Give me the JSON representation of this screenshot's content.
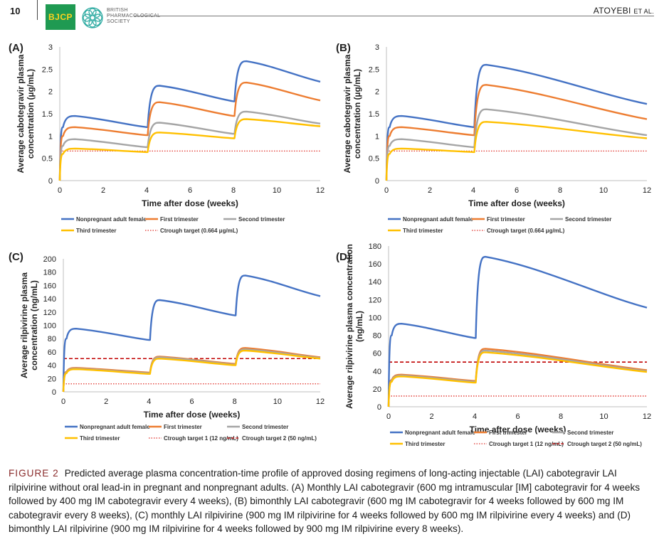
{
  "header": {
    "page_number": "10",
    "journal_abbrev": "BJCP",
    "society_lines": [
      "BRITISH",
      "PHARMACOLOGICAL",
      "SOCIETY"
    ],
    "author": "ATOYEBI",
    "author_suffix": "ET AL."
  },
  "caption": {
    "label": "FIGURE 2",
    "text": "Predicted average plasma concentration-time profile of approved dosing regimens of long-acting injectable (LAI) cabotegravir LAI rilpivirine without oral lead-in in pregnant and nonpregnant adults. (A) Monthly LAI cabotegravir (600 mg intramuscular [IM] cabotegravir for 4 weeks followed by 400 mg IM cabotegravir every 4 weeks), (B) bimonthly LAI cabotegravir (600 mg IM cabotegravir for 4 weeks followed by 600 mg IM cabotegravir every 8 weeks), (C) monthly LAI rilpivirine (900 mg IM rilpivirine for 4 weeks followed by 600 mg IM rilpivirine every 4 weeks) and (D) bimonthly LAI rilpivirine (900 mg IM rilpivirine for 4 weeks followed by 900 mg IM rilpivirine every 8 weeks)."
  },
  "colors": {
    "nonpregnant": "#4472c4",
    "first": "#ed7d31",
    "second": "#a5a5a5",
    "third": "#ffc000",
    "target1": "#e0302a",
    "target2": "#c00000"
  },
  "chart_data": [
    {
      "panel": "(A)",
      "type": "line",
      "xlabel": "Time after dose (weeks)",
      "ylabel_lines": [
        "Average cabotegravir plasma",
        "concentration (µg/mL)"
      ],
      "xlim": [
        0,
        12
      ],
      "ylim": [
        0,
        3
      ],
      "xticks": [
        0,
        2,
        4,
        6,
        8,
        10,
        12
      ],
      "yticks": [
        0,
        0.5,
        1,
        1.5,
        2,
        2.5,
        3
      ],
      "ytick_labels": [
        "0",
        "0.5",
        "1",
        "1.5",
        "2",
        "2.5",
        "3"
      ],
      "doses": [
        0,
        4,
        8
      ],
      "series": [
        {
          "name": "Nonpregnant adult female",
          "color": "#4472c4",
          "points": [
            [
              0,
              0
            ],
            [
              0.15,
              1.2
            ],
            [
              0.7,
              1.45
            ],
            [
              4,
              1.2
            ],
            [
              4.05,
              1.2
            ],
            [
              4.6,
              2.13
            ],
            [
              8,
              1.78
            ],
            [
              8.05,
              1.78
            ],
            [
              8.6,
              2.68
            ],
            [
              12,
              2.22
            ]
          ]
        },
        {
          "name": "First trimester",
          "color": "#ed7d31",
          "points": [
            [
              0,
              0
            ],
            [
              0.15,
              1.0
            ],
            [
              0.7,
              1.2
            ],
            [
              4,
              1.02
            ],
            [
              4.05,
              1.02
            ],
            [
              4.6,
              1.76
            ],
            [
              8,
              1.45
            ],
            [
              8.05,
              1.45
            ],
            [
              8.6,
              2.2
            ],
            [
              12,
              1.8
            ]
          ]
        },
        {
          "name": "Second trimester",
          "color": "#a5a5a5",
          "points": [
            [
              0,
              0
            ],
            [
              0.15,
              0.78
            ],
            [
              0.7,
              0.93
            ],
            [
              4,
              0.75
            ],
            [
              4.05,
              0.75
            ],
            [
              4.6,
              1.3
            ],
            [
              8,
              1.05
            ],
            [
              8.05,
              1.05
            ],
            [
              8.6,
              1.55
            ],
            [
              12,
              1.28
            ]
          ]
        },
        {
          "name": "Third trimester",
          "color": "#ffc000",
          "points": [
            [
              0,
              0
            ],
            [
              0.15,
              0.6
            ],
            [
              0.7,
              0.72
            ],
            [
              4,
              0.64
            ],
            [
              4.05,
              0.64
            ],
            [
              4.6,
              1.08
            ],
            [
              8,
              0.95
            ],
            [
              8.05,
              0.95
            ],
            [
              8.6,
              1.38
            ],
            [
              12,
              1.22
            ]
          ]
        }
      ],
      "targets": [
        {
          "name": "Ctrough target (0.664 μg/mL)",
          "value": 0.664,
          "color": "#e0302a",
          "dash": "dot"
        }
      ],
      "legend": [
        [
          "Nonpregnant adult female",
          "First trimester",
          "Second trimester"
        ],
        [
          "Third trimester",
          "Ctrough target (0.664 μg/mL)"
        ]
      ]
    },
    {
      "panel": "(B)",
      "type": "line",
      "xlabel": "Time after dose (weeks)",
      "ylabel_lines": [
        "Average cabotegravir plasma",
        "concentration (µg/mL)"
      ],
      "xlim": [
        0,
        12
      ],
      "ylim": [
        0,
        3
      ],
      "xticks": [
        0,
        2,
        4,
        6,
        8,
        10,
        12
      ],
      "yticks": [
        0,
        0.5,
        1,
        1.5,
        2,
        2.5,
        3
      ],
      "ytick_labels": [
        "0",
        "0.5",
        "1",
        "1.5",
        "2",
        "2.5",
        "3"
      ],
      "doses": [
        0,
        4
      ],
      "series": [
        {
          "name": "Nonpregnant adult female",
          "color": "#4472c4",
          "points": [
            [
              0,
              0
            ],
            [
              0.15,
              1.2
            ],
            [
              0.7,
              1.45
            ],
            [
              4,
              1.2
            ],
            [
              4.05,
              1.2
            ],
            [
              4.6,
              2.6
            ],
            [
              12,
              1.72
            ]
          ]
        },
        {
          "name": "First trimester",
          "color": "#ed7d31",
          "points": [
            [
              0,
              0
            ],
            [
              0.15,
              1.0
            ],
            [
              0.7,
              1.2
            ],
            [
              4,
              1.02
            ],
            [
              4.05,
              1.02
            ],
            [
              4.6,
              2.15
            ],
            [
              12,
              1.38
            ]
          ]
        },
        {
          "name": "Second trimester",
          "color": "#a5a5a5",
          "points": [
            [
              0,
              0
            ],
            [
              0.15,
              0.78
            ],
            [
              0.7,
              0.93
            ],
            [
              4,
              0.75
            ],
            [
              4.05,
              0.75
            ],
            [
              4.6,
              1.6
            ],
            [
              12,
              1.02
            ]
          ]
        },
        {
          "name": "Third trimester",
          "color": "#ffc000",
          "points": [
            [
              0,
              0
            ],
            [
              0.15,
              0.6
            ],
            [
              0.7,
              0.72
            ],
            [
              4,
              0.64
            ],
            [
              4.05,
              0.64
            ],
            [
              4.6,
              1.32
            ],
            [
              12,
              0.95
            ]
          ]
        }
      ],
      "targets": [
        {
          "name": "Ctrough target (0.664 μg/mL)",
          "value": 0.664,
          "color": "#e0302a",
          "dash": "dot"
        }
      ],
      "legend": [
        [
          "Nonpregnant adult female",
          "First trimester",
          "Second trimester"
        ],
        [
          "Third trimester",
          "Ctrough target (0.664 μg/mL)"
        ]
      ]
    },
    {
      "panel": "(C)",
      "type": "line",
      "xlabel": "Time after dose (weeks)",
      "ylabel_lines": [
        "Average rilpivirine plasma",
        "concentration (ng/mL)"
      ],
      "xlim": [
        0,
        12
      ],
      "ylim": [
        0,
        200
      ],
      "xticks": [
        0,
        2,
        4,
        6,
        8,
        10,
        12
      ],
      "yticks": [
        0,
        20,
        40,
        60,
        80,
        100,
        120,
        140,
        160,
        180,
        200
      ],
      "ytick_labels": [
        "0",
        "20",
        "40",
        "60",
        "80",
        "100",
        "120",
        "140",
        "160",
        "180",
        "200"
      ],
      "doses": [
        0,
        4,
        8
      ],
      "series": [
        {
          "name": "Nonpregnant adult female",
          "color": "#4472c4",
          "points": [
            [
              0,
              0
            ],
            [
              0.15,
              80
            ],
            [
              0.6,
              95
            ],
            [
              4,
              78
            ],
            [
              4.05,
              78
            ],
            [
              4.5,
              138
            ],
            [
              8,
              115
            ],
            [
              8.05,
              115
            ],
            [
              8.5,
              175
            ],
            [
              12,
              144
            ]
          ]
        },
        {
          "name": "First trimester",
          "color": "#ed7d31",
          "points": [
            [
              0,
              0
            ],
            [
              0.15,
              30
            ],
            [
              0.6,
              36
            ],
            [
              4,
              29
            ],
            [
              4.05,
              29
            ],
            [
              4.5,
              53
            ],
            [
              8,
              42
            ],
            [
              8.05,
              42
            ],
            [
              8.5,
              66
            ],
            [
              12,
              52
            ]
          ]
        },
        {
          "name": "Second trimester",
          "color": "#a5a5a5",
          "points": [
            [
              0,
              0
            ],
            [
              0.15,
              29
            ],
            [
              0.6,
              35
            ],
            [
              4,
              28
            ],
            [
              4.05,
              28
            ],
            [
              4.5,
              52
            ],
            [
              8,
              41
            ],
            [
              8.05,
              41
            ],
            [
              8.5,
              64
            ],
            [
              12,
              51
            ]
          ]
        },
        {
          "name": "Third trimester",
          "color": "#ffc000",
          "points": [
            [
              0,
              0
            ],
            [
              0.15,
              28
            ],
            [
              0.6,
              34
            ],
            [
              4,
              27
            ],
            [
              4.05,
              27
            ],
            [
              4.5,
              50
            ],
            [
              8,
              40
            ],
            [
              8.05,
              40
            ],
            [
              8.5,
              62
            ],
            [
              12,
              50
            ]
          ]
        }
      ],
      "targets": [
        {
          "name": "Ctrough target 1 (12 ng/mL)",
          "value": 12,
          "color": "#e0302a",
          "dash": "dot"
        },
        {
          "name": "Ctrough target 2 (50 ng/mL)",
          "value": 50,
          "color": "#c00000",
          "dash": "dash"
        }
      ],
      "legend": [
        [
          "Nonpregnant adult female",
          "First trimester",
          "Second trimester"
        ],
        [
          "Third trimester",
          "Ctrough target 1 (12 ng/mL)",
          "Ctrough target 2 (50 ng/mL)"
        ]
      ]
    },
    {
      "panel": "(D)",
      "type": "line",
      "xlabel": "Time after dose (weeks)",
      "ylabel_lines": [
        "Average rilpivirine plasma concentration",
        "(ng/mL)"
      ],
      "xlim": [
        0,
        12
      ],
      "ylim": [
        0,
        180
      ],
      "xticks": [
        0,
        2,
        4,
        6,
        8,
        10,
        12
      ],
      "yticks": [
        0,
        20,
        40,
        60,
        80,
        100,
        120,
        140,
        160,
        180
      ],
      "ytick_labels": [
        "0",
        "20",
        "40",
        "60",
        "80",
        "100",
        "120",
        "140",
        "160",
        "180"
      ],
      "doses": [
        0,
        4
      ],
      "series": [
        {
          "name": "Nonpregnant adult female",
          "color": "#4472c4",
          "points": [
            [
              0,
              0
            ],
            [
              0.15,
              80
            ],
            [
              0.6,
              93
            ],
            [
              4,
              77
            ],
            [
              4.05,
              77
            ],
            [
              4.5,
              168
            ],
            [
              12,
              111
            ]
          ]
        },
        {
          "name": "First trimester",
          "color": "#ed7d31",
          "points": [
            [
              0,
              0
            ],
            [
              0.15,
              30
            ],
            [
              0.6,
              36
            ],
            [
              4,
              29
            ],
            [
              4.05,
              29
            ],
            [
              4.5,
              65
            ],
            [
              12,
              41
            ]
          ]
        },
        {
          "name": "Second trimester",
          "color": "#a5a5a5",
          "points": [
            [
              0,
              0
            ],
            [
              0.15,
              29
            ],
            [
              0.6,
              35
            ],
            [
              4,
              28
            ],
            [
              4.05,
              28
            ],
            [
              4.5,
              63
            ],
            [
              12,
              40
            ]
          ]
        },
        {
          "name": "Third trimester",
          "color": "#ffc000",
          "points": [
            [
              0,
              0
            ],
            [
              0.15,
              28
            ],
            [
              0.6,
              34
            ],
            [
              4,
              27
            ],
            [
              4.05,
              27
            ],
            [
              4.5,
              61
            ],
            [
              12,
              39
            ]
          ]
        }
      ],
      "targets": [
        {
          "name": "Ctrough target 1 (12 ng/mL)",
          "value": 12,
          "color": "#e0302a",
          "dash": "dot"
        },
        {
          "name": "Ctrough target 2 (50 ng/mL)",
          "value": 50,
          "color": "#c00000",
          "dash": "dash"
        }
      ],
      "legend": [
        [
          "Nonpregnant adult female",
          "First trimester",
          "Second trimester"
        ],
        [
          "Third trimester",
          "Ctrough target 1 (12 ng/mL)",
          "Ctrough target 2 (50 ng/mL)"
        ]
      ]
    }
  ]
}
